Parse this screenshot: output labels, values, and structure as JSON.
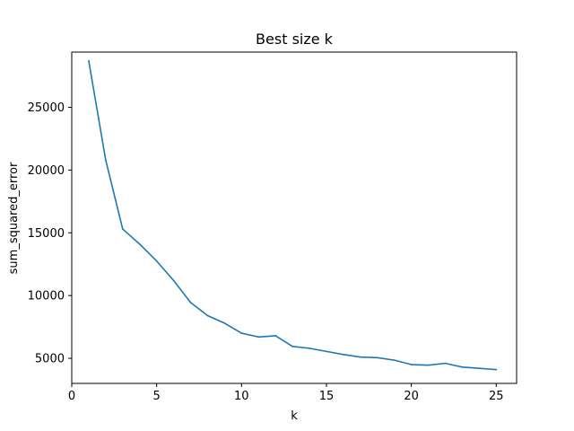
{
  "chart_data": {
    "type": "line",
    "title": "Best size k",
    "xlabel": "k",
    "ylabel": "sum_squared_error",
    "xlim": [
      0,
      26.2
    ],
    "ylim": [
      3000,
      29400
    ],
    "grid": false,
    "x_ticks": [
      0,
      5,
      10,
      15,
      20,
      25
    ],
    "y_ticks": [
      5000,
      10000,
      15000,
      20000,
      25000
    ],
    "series": [
      {
        "color": "#1f77b4",
        "x": [
          1,
          2,
          3,
          4,
          5,
          6,
          7,
          8,
          9,
          10,
          11,
          12,
          13,
          14,
          15,
          16,
          17,
          18,
          19,
          20,
          21,
          22,
          23,
          24,
          25
        ],
        "y": [
          28700,
          20800,
          15300,
          14100,
          12750,
          11200,
          9450,
          8400,
          7800,
          7000,
          6700,
          6800,
          5950,
          5800,
          5550,
          5300,
          5100,
          5050,
          4850,
          4500,
          4450,
          4600,
          4300,
          4200,
          4100
        ]
      }
    ]
  }
}
